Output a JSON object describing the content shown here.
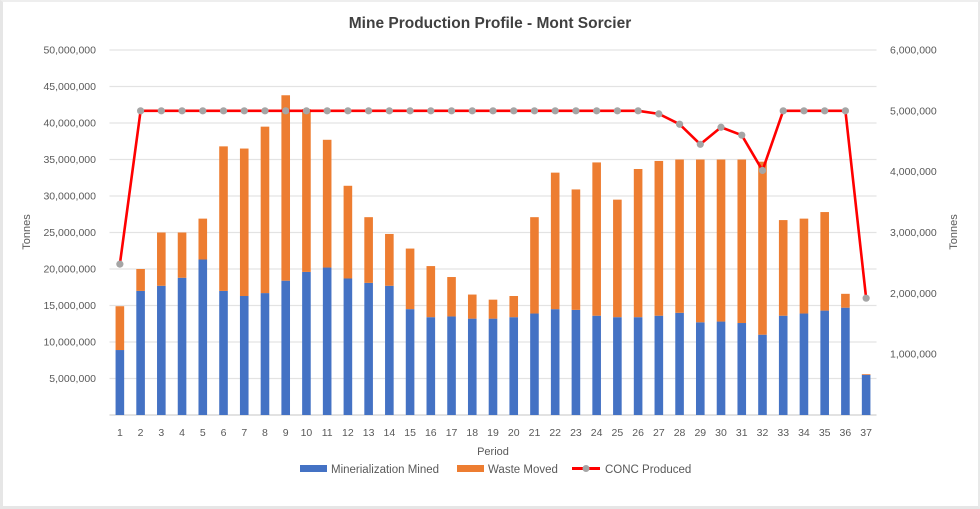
{
  "chart_data": {
    "type": "bar",
    "stacked": true,
    "title": "Mine Production Profile - Mont Sorcier",
    "xlabel": "Period",
    "ylabel": "Tonnes",
    "y2label": "Tonnes",
    "ylim": [
      0,
      50000000
    ],
    "y2lim": [
      0,
      6000000
    ],
    "grid": true,
    "legend_position": "bottom",
    "yticks": [
      "",
      "5,000,000",
      "10,000,000",
      "15,000,000",
      "20,000,000",
      "25,000,000",
      "30,000,000",
      "35,000,000",
      "40,000,000",
      "45,000,000",
      "50,000,000"
    ],
    "y2ticks": [
      "",
      "1,000,000",
      "2,000,000",
      "3,000,000",
      "4,000,000",
      "5,000,000",
      "6,000,000"
    ],
    "categories": [
      "1",
      "2",
      "3",
      "4",
      "5",
      "6",
      "7",
      "8",
      "9",
      "10",
      "11",
      "12",
      "13",
      "14",
      "15",
      "16",
      "17",
      "18",
      "19",
      "20",
      "21",
      "22",
      "23",
      "24",
      "25",
      "26",
      "27",
      "28",
      "29",
      "30",
      "31",
      "32",
      "33",
      "34",
      "35",
      "36",
      "37"
    ],
    "series": [
      {
        "name": "Minerialization Mined",
        "kind": "bar",
        "axis": "left",
        "color": "#4472c4",
        "values": [
          8900000,
          17000000,
          17700000,
          18800000,
          21300000,
          17000000,
          16300000,
          16700000,
          18400000,
          19600000,
          20200000,
          18700000,
          18100000,
          17700000,
          14500000,
          13400000,
          13500000,
          13200000,
          13200000,
          13400000,
          13900000,
          14500000,
          14400000,
          13600000,
          13400000,
          13400000,
          13600000,
          14000000,
          12700000,
          12800000,
          12600000,
          11000000,
          13600000,
          13900000,
          14300000,
          14700000,
          5500000
        ]
      },
      {
        "name": "Waste Moved",
        "kind": "bar",
        "axis": "left",
        "color": "#ed7d31",
        "values": [
          6000000,
          3000000,
          7300000,
          6200000,
          5600000,
          19800000,
          20200000,
          22800000,
          25400000,
          22300000,
          17500000,
          12700000,
          9000000,
          7100000,
          8300000,
          7000000,
          5400000,
          3300000,
          2600000,
          2900000,
          13200000,
          18700000,
          16500000,
          21000000,
          16100000,
          20300000,
          21200000,
          21000000,
          22300000,
          22200000,
          22400000,
          23700000,
          13100000,
          13000000,
          13500000,
          1900000,
          100000
        ]
      },
      {
        "name": "CONC Produced",
        "kind": "line",
        "axis": "right",
        "color": "#ff0000",
        "marker_color": "#a5a5a5",
        "values": [
          2480000,
          5000000,
          5000000,
          5000000,
          5000000,
          5000000,
          5000000,
          5000000,
          5000000,
          5000000,
          5000000,
          5000000,
          5000000,
          5000000,
          5000000,
          5000000,
          5000000,
          5000000,
          5000000,
          5000000,
          5000000,
          5000000,
          5000000,
          5000000,
          5000000,
          5000000,
          4950000,
          4780000,
          4450000,
          4730000,
          4600000,
          4020000,
          5000000,
          5000000,
          5000000,
          5000000,
          1920000
        ]
      }
    ]
  }
}
